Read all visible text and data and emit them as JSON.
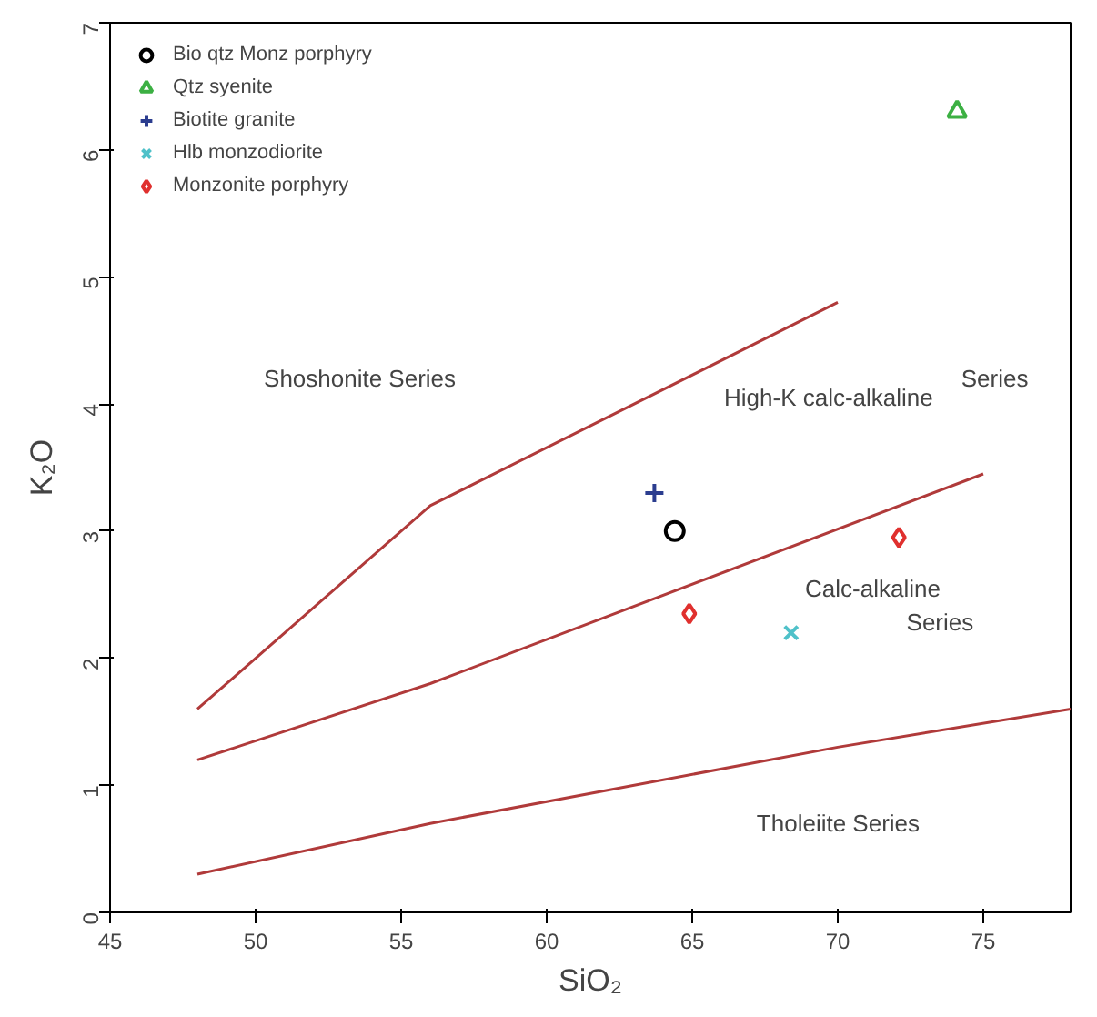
{
  "chart_data": {
    "type": "scatter",
    "xlabel": "SiO₂",
    "ylabel": "K₂O",
    "xlim": [
      45,
      78
    ],
    "ylim": [
      0,
      7
    ],
    "xticks": [
      45,
      50,
      55,
      60,
      65,
      70,
      75
    ],
    "yticks": [
      0,
      1,
      2,
      3,
      4,
      5,
      6,
      7
    ],
    "grid": false,
    "legend": "top left",
    "series": [
      {
        "name": "Bio qtz Monz porphyry",
        "color": "#000000",
        "marker": "circle",
        "x": [
          64.4
        ],
        "values": [
          3.0
        ]
      },
      {
        "name": "Qtz syenite",
        "color": "#3cb043",
        "marker": "triangle",
        "x": [
          74.1
        ],
        "values": [
          6.3
        ]
      },
      {
        "name": "Biotite granite",
        "color": "#2b3d8f",
        "marker": "cross",
        "x": [
          63.7
        ],
        "values": [
          3.3
        ]
      },
      {
        "name": "Hlb monzodiorite",
        "color": "#4fc1c9",
        "marker": "x",
        "x": [
          68.4
        ],
        "values": [
          2.2
        ]
      },
      {
        "name": "Monzonite porphyry",
        "color": "#e0302e",
        "marker": "diamond",
        "x": [
          64.9,
          72.1
        ],
        "values": [
          2.35,
          2.95
        ]
      },
      {
        "type": "line",
        "color": "#b03a3a",
        "x": [
          48,
          56,
          70
        ],
        "values": [
          1.6,
          3.2,
          4.8
        ]
      },
      {
        "type": "line",
        "color": "#b03a3a",
        "x": [
          48,
          56,
          75
        ],
        "values": [
          1.2,
          1.8,
          3.45
        ]
      },
      {
        "type": "line",
        "color": "#b03a3a",
        "x": [
          48,
          56,
          70,
          78
        ],
        "values": [
          0.3,
          0.7,
          1.3,
          1.6
        ]
      }
    ],
    "annotations": [
      "Shoshonite Series",
      "High-K calc-alkaline",
      "Series",
      "Calc-alkaline",
      "Series",
      "Tholeiite Series"
    ]
  }
}
